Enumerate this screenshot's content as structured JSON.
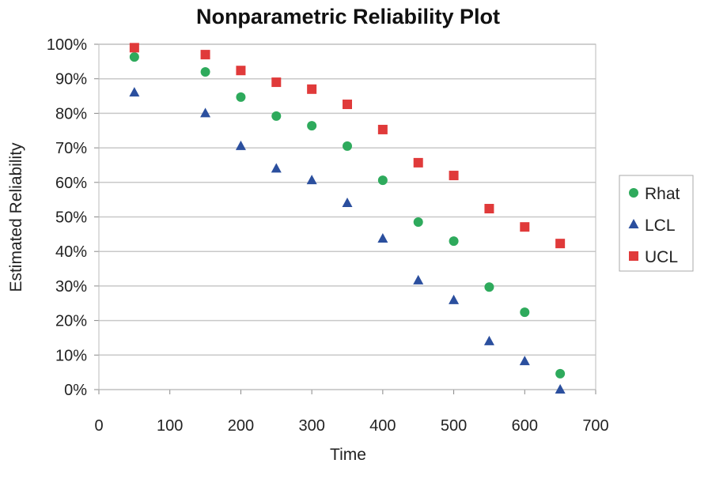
{
  "chart_data": {
    "type": "scatter",
    "title": "Nonparametric Reliability Plot",
    "xlabel": "Time",
    "ylabel": "Estimated Reliability",
    "xlim": [
      0,
      700
    ],
    "ylim": [
      0,
      100
    ],
    "xticks": [
      "0",
      "100",
      "200",
      "300",
      "400",
      "500",
      "600",
      "700"
    ],
    "yticks": [
      "0%",
      "10%",
      "20%",
      "30%",
      "40%",
      "50%",
      "60%",
      "70%",
      "80%",
      "90%",
      "100%"
    ],
    "grid": "horizontal",
    "legend_position": "right",
    "x": [
      50,
      150,
      200,
      250,
      300,
      350,
      400,
      450,
      500,
      550,
      600,
      650
    ],
    "series": [
      {
        "name": "Rhat",
        "marker": "circle",
        "color": "#2eaa5c",
        "values": [
          96.3,
          92.0,
          84.7,
          79.2,
          76.4,
          70.5,
          60.6,
          48.5,
          43.0,
          29.7,
          22.4,
          4.6
        ]
      },
      {
        "name": "LCL",
        "marker": "triangle",
        "color": "#2b4f9e",
        "values": [
          86.0,
          80.0,
          70.5,
          64.0,
          60.6,
          54.0,
          43.7,
          31.6,
          25.9,
          14.0,
          8.2,
          0.0
        ]
      },
      {
        "name": "UCL",
        "marker": "square",
        "color": "#e03a3a",
        "values": [
          99.0,
          97.0,
          92.4,
          89.0,
          87.0,
          82.6,
          75.3,
          65.7,
          62.0,
          52.4,
          47.1,
          42.3
        ]
      }
    ]
  }
}
